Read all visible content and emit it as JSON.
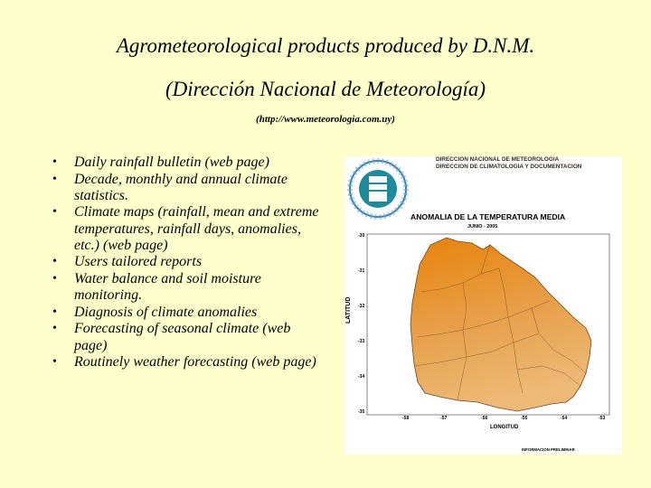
{
  "header": {
    "title_line1": "Agrometeorological products produced by D.N.M.",
    "title_line2": "(Dirección Nacional de Meteorología)",
    "url": "(http://www.meteorologia.com.uy)"
  },
  "bullets": [
    {
      "text": "Daily rainfall bulletin ",
      "link": "(web page)"
    },
    {
      "text": "Decade, monthly and annual climate statistics.",
      "link": ""
    },
    {
      "text": "Climate maps (rainfall, mean and extreme temperatures, rainfall days, anomalies, etc.) ",
      "link": "(web page)"
    },
    {
      "text": "Users  tailored reports",
      "link": ""
    },
    {
      "text": "Water balance and soil moisture monitoring.",
      "link": ""
    },
    {
      "text": "Diagnosis of climate anomalies",
      "link": ""
    },
    {
      "text": "Forecasting of seasonal climate ",
      "link": "(web page)"
    },
    {
      "text": "Routinely weather forecasting ",
      "link": "(web page)"
    }
  ],
  "map": {
    "agency_line1": "DIRECCION NACIONAL DE METEOROLOGIA",
    "agency_line2": "DIRECCION DE CLIMATOLOGIA Y DOCUMENTACION",
    "title": "ANOMALIA DE LA TEMPERATURA MEDIA",
    "subtitle": "JUNIO - 2005",
    "y_axis_label": "LATITUD",
    "x_axis_label": "LONGITUD",
    "footer": "INFORMACION PRELIMINAR",
    "lat_ticks": [
      "-30",
      "-31",
      "-32",
      "-33",
      "-34",
      "-35"
    ],
    "lon_ticks": [
      "-58",
      "-57",
      "-56",
      "-55",
      "-54",
      "-53"
    ],
    "colors": {
      "north": "#e98a14",
      "center": "#e7a34e",
      "south": "#ecb672"
    }
  }
}
